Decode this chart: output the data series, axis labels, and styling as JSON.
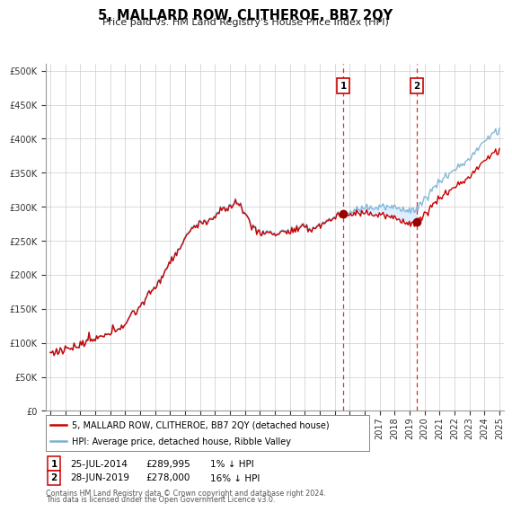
{
  "title": "5, MALLARD ROW, CLITHEROE, BB7 2QY",
  "subtitle": "Price paid vs. HM Land Registry's House Price Index (HPI)",
  "yticks": [
    0,
    50000,
    100000,
    150000,
    200000,
    250000,
    300000,
    350000,
    400000,
    450000,
    500000
  ],
  "sale1_date": 2014.56,
  "sale1_price": 289995,
  "sale1_label": "1",
  "sale2_date": 2019.49,
  "sale2_price": 278000,
  "sale2_label": "2",
  "line_color_sale": "#cc0000",
  "line_color_hpi": "#7ab0d4",
  "shade_color": "#ddeeff",
  "grid_color": "#cccccc",
  "background_color": "#ffffff",
  "legend_label_sale": "5, MALLARD ROW, CLITHEROE, BB7 2QY (detached house)",
  "legend_label_hpi": "HPI: Average price, detached house, Ribble Valley",
  "sale1_info_date": "25-JUL-2014",
  "sale1_info_price": "£289,995",
  "sale1_info_hpi": "1% ↓ HPI",
  "sale2_info_date": "28-JUN-2019",
  "sale2_info_price": "£278,000",
  "sale2_info_hpi": "16% ↓ HPI",
  "footer1": "Contains HM Land Registry data © Crown copyright and database right 2024.",
  "footer2": "This data is licensed under the Open Government Licence v3.0."
}
